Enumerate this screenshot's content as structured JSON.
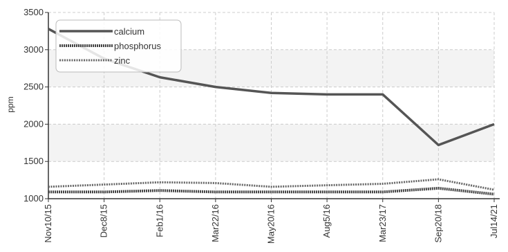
{
  "chart_data": {
    "type": "line",
    "title": "",
    "xlabel": "",
    "ylabel": "ppm",
    "ylim": [
      1000,
      3500
    ],
    "yticks": [
      "1000",
      "1500",
      "2000",
      "2500",
      "3000",
      "3500"
    ],
    "categories": [
      "Nov10/15",
      "Dec8/15",
      "Feb1/16",
      "Mar22/16",
      "May20/16",
      "Aug5/16",
      "Mar23/17",
      "Sep20/18",
      "Jul14/21"
    ],
    "series": [
      {
        "name": "calcium",
        "color": "#555555",
        "style": "solid",
        "values": [
          3280,
          2880,
          2630,
          2500,
          2420,
          2400,
          2400,
          1720,
          2000
        ]
      },
      {
        "name": "phosphorus",
        "color": "#444444",
        "style": "dense-dotted",
        "values": [
          1090,
          1090,
          1110,
          1090,
          1090,
          1090,
          1090,
          1140,
          1060
        ]
      },
      {
        "name": "zinc",
        "color": "#666666",
        "style": "dotted",
        "values": [
          1160,
          1190,
          1220,
          1210,
          1160,
          1180,
          1200,
          1260,
          1120
        ]
      }
    ],
    "grid": true,
    "legend_position": "top-left"
  }
}
